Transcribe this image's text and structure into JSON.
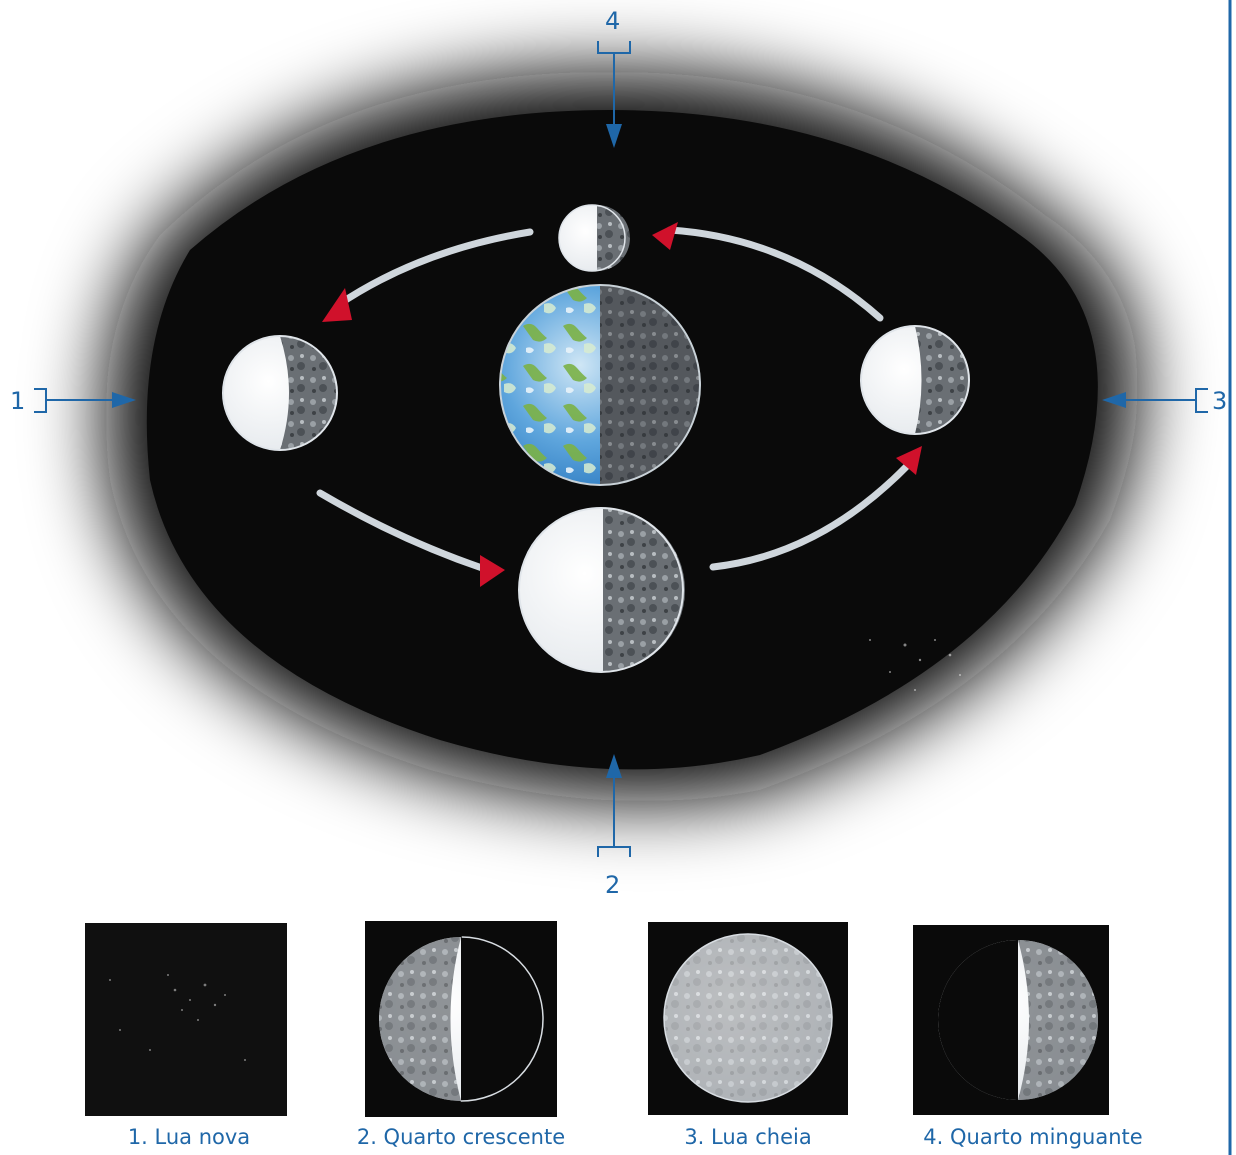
{
  "pointers": [
    {
      "number": "1",
      "side": "left"
    },
    {
      "number": "2",
      "side": "bottom"
    },
    {
      "number": "3",
      "side": "right"
    },
    {
      "number": "4",
      "side": "top"
    }
  ],
  "captions": [
    {
      "label": "1. Lua nova",
      "phase": "new"
    },
    {
      "label": "2. Quarto crescente",
      "phase": "first-quarter"
    },
    {
      "label": "3. Lua cheia",
      "phase": "full"
    },
    {
      "label": "4. Quarto minguante",
      "phase": "last-quarter"
    }
  ],
  "colors": {
    "pointer": "#1f67a8",
    "arrowhead": "#d0112b",
    "space": "#0a0a0a",
    "ocean": "#3d93d6",
    "land": "#6fa83a",
    "frame-line": "#1f67a8"
  },
  "icons": [
    "earth-icon",
    "moon-icon",
    "arrowhead-icon"
  ]
}
